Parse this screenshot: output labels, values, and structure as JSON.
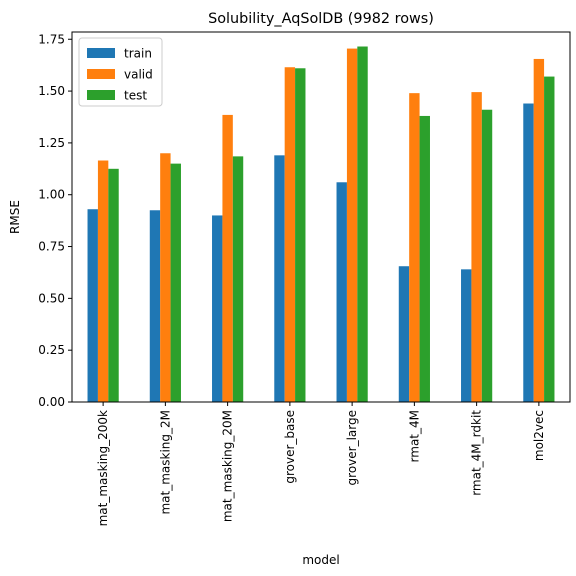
{
  "chart_data": {
    "type": "bar",
    "title": "Solubility_AqSolDB (9982 rows)",
    "xlabel": "model",
    "ylabel": "RMSE",
    "ylim": [
      0,
      1.785
    ],
    "yticks": [
      "0.00",
      "0.25",
      "0.50",
      "0.75",
      "1.00",
      "1.25",
      "1.50",
      "1.75"
    ],
    "grid": false,
    "legend_position": "top-left",
    "categories": [
      "mat_masking_200k",
      "mat_masking_2M",
      "mat_masking_20M",
      "grover_base",
      "grover_large",
      "rmat_4M",
      "rmat_4M_rdkit",
      "mol2vec"
    ],
    "series": [
      {
        "name": "train",
        "color": "#1f77b4",
        "values": [
          0.93,
          0.925,
          0.9,
          1.19,
          1.06,
          0.655,
          0.64,
          1.44
        ]
      },
      {
        "name": "valid",
        "color": "#ff7f0e",
        "values": [
          1.165,
          1.2,
          1.385,
          1.615,
          1.705,
          1.49,
          1.495,
          1.655
        ]
      },
      {
        "name": "test",
        "color": "#2ca02c",
        "values": [
          1.125,
          1.15,
          1.185,
          1.61,
          1.715,
          1.38,
          1.41,
          1.57
        ]
      }
    ]
  }
}
